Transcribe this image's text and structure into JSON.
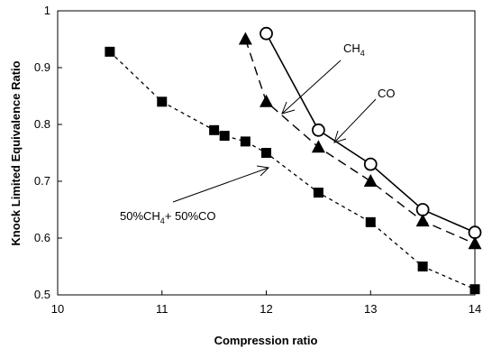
{
  "chart_data": {
    "type": "line",
    "xlabel": "Compression ratio",
    "ylabel": "Knock Limited Equivalence Ratio",
    "xlim": [
      10,
      14
    ],
    "ylim": [
      0.5,
      1.0
    ],
    "xticks": [
      "10",
      "11",
      "12",
      "13",
      "14"
    ],
    "yticks": [
      "0.5",
      "0.6",
      "0.7",
      "0.8",
      "0.9",
      "1"
    ],
    "grid": false,
    "series": [
      {
        "key": "co",
        "marker": "open-circle",
        "line": "solid",
        "x": [
          12.0,
          12.5,
          13.0,
          13.5,
          14.0
        ],
        "y": [
          0.96,
          0.79,
          0.73,
          0.65,
          0.61
        ]
      },
      {
        "key": "ch4",
        "marker": "filled-triangle",
        "line": "dashed",
        "x": [
          11.8,
          12.0,
          12.5,
          13.0,
          13.5,
          14.0
        ],
        "y": [
          0.95,
          0.84,
          0.76,
          0.7,
          0.63,
          0.59
        ]
      },
      {
        "key": "mix",
        "marker": "filled-square",
        "line": "dotted",
        "x": [
          10.5,
          11.0,
          11.5,
          11.6,
          11.8,
          12.0,
          12.5,
          13.0,
          13.5,
          14.0
        ],
        "y": [
          0.928,
          0.84,
          0.79,
          0.78,
          0.77,
          0.75,
          0.68,
          0.628,
          0.55,
          0.51
        ]
      }
    ],
    "annotations": {
      "ch4": {
        "text": "CH",
        "sub": "4"
      },
      "co": {
        "text": "CO"
      },
      "mix": {
        "a": "50%CH",
        "sub": "4",
        "b": "+ 50%CO"
      }
    }
  }
}
